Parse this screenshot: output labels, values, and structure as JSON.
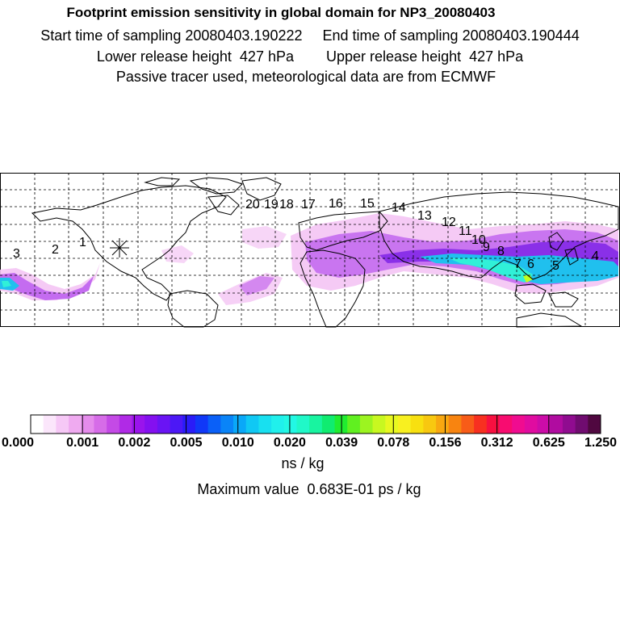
{
  "header": {
    "title": "Footprint emission sensitivity in global domain for NP3_20080403",
    "line2": "Start time of sampling 20080403.190222     End time of sampling 20080403.190444",
    "line3": "Lower release height  427 hPa        Upper release height  427 hPa",
    "line4": "Passive tracer used, meteorological data are from ECMWF"
  },
  "map": {
    "domain": "global",
    "gridlines": "dashed",
    "release_marker_icon": "asterisk-icon",
    "trajectory_labels": [
      "1",
      "2",
      "3",
      "4",
      "5",
      "6",
      "7",
      "8",
      "9",
      "10",
      "11",
      "12",
      "13",
      "14",
      "15",
      "16",
      "17",
      "18",
      "19",
      "20"
    ],
    "plume_colors": {
      "light": "#f4b8f4",
      "medium": "#c060f0",
      "strong": "#8a2be2",
      "core": "#1ec8e6",
      "peak": "#00ffd0"
    }
  },
  "colorbar": {
    "tick_labels": [
      "0.000",
      "0.001",
      "0.002",
      "0.005",
      "0.010",
      "0.020",
      "0.039",
      "0.078",
      "0.156",
      "0.312",
      "0.625",
      "1.250"
    ],
    "colors": [
      "#ffffff",
      "#fbe6fb",
      "#f6c8f6",
      "#efaaf0",
      "#e58cec",
      "#d66ce8",
      "#c44ae6",
      "#b02ae6",
      "#9a14ec",
      "#8410f0",
      "#6a14f4",
      "#4c18f6",
      "#2a1cf8",
      "#1038f8",
      "#0a60f8",
      "#0a84f8",
      "#0aa8f8",
      "#10c8f4",
      "#18e0f0",
      "#20f0ec",
      "#22f8e4",
      "#20f8c8",
      "#18f4a0",
      "#10ec70",
      "#20ec30",
      "#60f020",
      "#9cf420",
      "#c8f820",
      "#e8f820",
      "#f8f020",
      "#f8e010",
      "#f8c810",
      "#f8a810",
      "#f88410",
      "#f85c18",
      "#f83020",
      "#f81040",
      "#f80c70",
      "#f00c90",
      "#e00ca0",
      "#cc0ca8",
      "#b00ca0",
      "#900c90",
      "#700c70",
      "#500840"
    ],
    "units": "ns / kg"
  },
  "footer": {
    "max_value": "Maximum value  0.683E-01 ps / kg"
  }
}
